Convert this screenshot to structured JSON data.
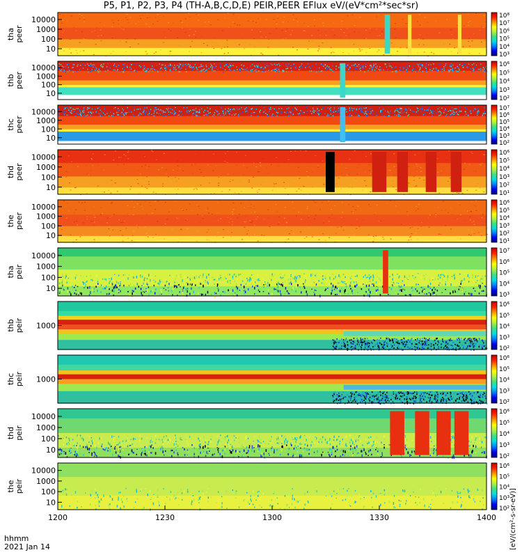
{
  "chart_data": {
    "type": "heatmap",
    "title": "P5, P1, P2, P3, P4 (TH-A,B,C,D,E) PEIR,PEER EFlux eV/(eV*cm²*sec*sr)",
    "colorbar_title": "[eV/(cm²-s-sr-eV)]",
    "x_axis": {
      "label_line1": "hhmm",
      "label_line2": "2021 Jan 14",
      "tick_labels": [
        "1200",
        "1230",
        "1300",
        "1330",
        "1400"
      ],
      "tick_values_min": [
        0,
        30,
        60,
        90,
        120
      ],
      "range_min": [
        0,
        120
      ]
    },
    "panels": [
      {
        "probe": "tha",
        "species": "peer",
        "ylabel": [
          "tha",
          "peer"
        ],
        "yticks": [
          "10",
          "100",
          "1000",
          "10000"
        ],
        "cbar_ticks": [
          "10³",
          "10⁴",
          "10⁵",
          "10⁶",
          "10⁷",
          "10⁸"
        ],
        "texture": "high",
        "bands": [
          {
            "from": 0.0,
            "to": 0.35,
            "color": "#f56a10"
          },
          {
            "from": 0.35,
            "to": 0.62,
            "color": "#f0501a"
          },
          {
            "from": 0.62,
            "to": 0.82,
            "color": "#f5a020"
          },
          {
            "from": 0.82,
            "to": 1.0,
            "color": "#fff03a"
          }
        ],
        "events": [
          {
            "t0": 91.5,
            "t1": 93.0,
            "color": "#3ad8c8"
          },
          {
            "t0": 98.0,
            "t1": 99.0,
            "color": "#ffe040"
          },
          {
            "t0": 112.0,
            "t1": 113.0,
            "color": "#ffe040"
          }
        ]
      },
      {
        "probe": "thb",
        "species": "peer",
        "ylabel": [
          "thb",
          "peer"
        ],
        "yticks": [
          "10",
          "100",
          "1000",
          "10000"
        ],
        "cbar_ticks": [
          "10²",
          "10³",
          "10⁴",
          "10⁵",
          "10⁶"
        ],
        "texture": "cyan_top",
        "bands": [
          {
            "from": 0.0,
            "to": 0.25,
            "color": "#d82010"
          },
          {
            "from": 0.25,
            "to": 0.5,
            "color": "#f04a12"
          },
          {
            "from": 0.5,
            "to": 0.62,
            "color": "#f5a020"
          },
          {
            "from": 0.62,
            "to": 0.68,
            "color": "#fff040"
          },
          {
            "from": 0.68,
            "to": 0.88,
            "color": "#40e0c0"
          },
          {
            "from": 0.88,
            "to": 1.0,
            "color": "#ffffff"
          }
        ],
        "events": [
          {
            "t0": 79.0,
            "t1": 80.5,
            "color": "#3ad8c8"
          }
        ]
      },
      {
        "probe": "thc",
        "species": "peer",
        "ylabel": [
          "thc",
          "peer"
        ],
        "yticks": [
          "10",
          "100",
          "1000",
          "10000"
        ],
        "cbar_ticks": [
          "10²",
          "10³",
          "10⁴",
          "10⁵",
          "10⁶",
          "10⁷"
        ],
        "texture": "cyan_top",
        "bands": [
          {
            "from": 0.0,
            "to": 0.28,
            "color": "#d02010"
          },
          {
            "from": 0.28,
            "to": 0.5,
            "color": "#f04a12"
          },
          {
            "from": 0.5,
            "to": 0.62,
            "color": "#f5a020"
          },
          {
            "from": 0.62,
            "to": 0.68,
            "color": "#fff040"
          },
          {
            "from": 0.68,
            "to": 0.92,
            "color": "#2a9ae8"
          },
          {
            "from": 0.92,
            "to": 1.0,
            "color": "#ffffff"
          }
        ],
        "events": [
          {
            "t0": 79.0,
            "t1": 80.5,
            "color": "#40c0f0"
          }
        ]
      },
      {
        "probe": "thd",
        "species": "peer",
        "ylabel": [
          "thd",
          "peer"
        ],
        "yticks": [
          "10",
          "100",
          "1000",
          "10000"
        ],
        "cbar_ticks": [
          "10¹",
          "10²",
          "10³",
          "10⁴",
          "10⁵",
          "10⁶"
        ],
        "texture": "high",
        "bands": [
          {
            "from": 0.0,
            "to": 0.3,
            "color": "#e83012"
          },
          {
            "from": 0.3,
            "to": 0.6,
            "color": "#f05a14"
          },
          {
            "from": 0.6,
            "to": 0.85,
            "color": "#f5a020"
          },
          {
            "from": 0.85,
            "to": 1.0,
            "color": "#ffe040"
          }
        ],
        "events": [
          {
            "t0": 75.0,
            "t1": 77.5,
            "color": "#000000"
          },
          {
            "t0": 88.0,
            "t1": 92.0,
            "color": "#d02010"
          },
          {
            "t0": 95.0,
            "t1": 98.0,
            "color": "#d02010"
          },
          {
            "t0": 103.0,
            "t1": 106.0,
            "color": "#d02010"
          },
          {
            "t0": 110.0,
            "t1": 113.0,
            "color": "#d02010"
          }
        ]
      },
      {
        "probe": "the",
        "species": "peer",
        "ylabel": [
          "the",
          "peer"
        ],
        "yticks": [
          "10",
          "100",
          "1000",
          "10000"
        ],
        "cbar_ticks": [
          "10¹",
          "10²",
          "10³",
          "10⁴",
          "10⁵",
          "10⁶"
        ],
        "texture": "high",
        "bands": [
          {
            "from": 0.0,
            "to": 0.35,
            "color": "#f06a14"
          },
          {
            "from": 0.35,
            "to": 0.62,
            "color": "#f0501a"
          },
          {
            "from": 0.62,
            "to": 0.85,
            "color": "#f58a20"
          },
          {
            "from": 0.85,
            "to": 1.0,
            "color": "#ffe040"
          }
        ],
        "events": []
      },
      {
        "probe": "tha",
        "species": "peir",
        "ylabel": [
          "tha",
          "peir"
        ],
        "yticks": [
          "10",
          "100",
          "1000",
          "10000"
        ],
        "cbar_ticks": [
          "10³",
          "10⁴",
          "10⁵",
          "10⁶",
          "10⁷"
        ],
        "texture": "ion",
        "bands": [
          {
            "from": 0.0,
            "to": 0.18,
            "color": "#30c870"
          },
          {
            "from": 0.18,
            "to": 0.45,
            "color": "#80e060"
          },
          {
            "from": 0.45,
            "to": 0.8,
            "color": "#d8f040"
          },
          {
            "from": 0.8,
            "to": 1.0,
            "color": "#90e860"
          }
        ],
        "events": [
          {
            "t0": 91.0,
            "t1": 92.5,
            "color": "#e83010"
          }
        ]
      },
      {
        "probe": "thb",
        "species": "peir",
        "ylabel": [
          "thb",
          "peir"
        ],
        "yticks": [
          "1000"
        ],
        "cbar_ticks": [
          "10²",
          "10³",
          "10⁴",
          "10⁵",
          "10⁶"
        ],
        "texture": "stripe",
        "bands": [
          {
            "from": 0.0,
            "to": 0.2,
            "color": "#20c8a0"
          },
          {
            "from": 0.2,
            "to": 0.3,
            "color": "#30e0a0"
          },
          {
            "from": 0.3,
            "to": 0.38,
            "color": "#f5d020"
          },
          {
            "from": 0.38,
            "to": 0.48,
            "color": "#d82010"
          },
          {
            "from": 0.48,
            "to": 0.58,
            "color": "#f05020"
          },
          {
            "from": 0.58,
            "to": 0.68,
            "color": "#f5c020"
          },
          {
            "from": 0.68,
            "to": 0.8,
            "color": "#a0e850"
          },
          {
            "from": 0.8,
            "to": 1.0,
            "color": "#30c0a0"
          }
        ],
        "events": [
          {
            "t0": 80.0,
            "t1": 120.0,
            "color": "#60d8b0"
          }
        ]
      },
      {
        "probe": "thc",
        "species": "peir",
        "ylabel": [
          "thc",
          "peir"
        ],
        "yticks": [
          "1000"
        ],
        "cbar_ticks": [
          "10²",
          "10³",
          "10⁴",
          "10⁵",
          "10⁶"
        ],
        "texture": "stripe",
        "bands": [
          {
            "from": 0.0,
            "to": 0.2,
            "color": "#20c8b0"
          },
          {
            "from": 0.2,
            "to": 0.32,
            "color": "#40d8a0"
          },
          {
            "from": 0.32,
            "to": 0.4,
            "color": "#f5c020"
          },
          {
            "from": 0.4,
            "to": 0.5,
            "color": "#d82010"
          },
          {
            "from": 0.5,
            "to": 0.6,
            "color": "#f5a020"
          },
          {
            "from": 0.6,
            "to": 0.75,
            "color": "#a0e850"
          },
          {
            "from": 0.75,
            "to": 1.0,
            "color": "#30c0a0"
          }
        ],
        "events": [
          {
            "t0": 80.0,
            "t1": 120.0,
            "color": "#50b8e0"
          }
        ]
      },
      {
        "probe": "thd",
        "species": "peir",
        "ylabel": [
          "thd",
          "peir"
        ],
        "yticks": [
          "10",
          "100",
          "1000",
          "10000"
        ],
        "cbar_ticks": [
          "10²",
          "10³",
          "10⁴",
          "10⁵",
          "10⁶"
        ],
        "texture": "ion",
        "bands": [
          {
            "from": 0.0,
            "to": 0.2,
            "color": "#30c890"
          },
          {
            "from": 0.2,
            "to": 0.5,
            "color": "#70d870"
          },
          {
            "from": 0.5,
            "to": 0.8,
            "color": "#c8ec50"
          },
          {
            "from": 0.8,
            "to": 1.0,
            "color": "#90e060"
          }
        ],
        "events": [
          {
            "t0": 93.0,
            "t1": 97.0,
            "color": "#e83010"
          },
          {
            "t0": 100.0,
            "t1": 104.0,
            "color": "#e83010"
          },
          {
            "t0": 106.0,
            "t1": 110.0,
            "color": "#e83010"
          },
          {
            "t0": 111.0,
            "t1": 115.0,
            "color": "#e83010"
          }
        ]
      },
      {
        "probe": "the",
        "species": "peir",
        "ylabel": [
          "the",
          "peir"
        ],
        "yticks": [
          "10",
          "100",
          "1000",
          "10000"
        ],
        "cbar_ticks": [
          "10²",
          "10³",
          "10⁴",
          "10⁵",
          "10⁶"
        ],
        "texture": "ion_soft",
        "bands": [
          {
            "from": 0.0,
            "to": 0.3,
            "color": "#90e060"
          },
          {
            "from": 0.3,
            "to": 0.7,
            "color": "#c8ec50"
          },
          {
            "from": 0.7,
            "to": 1.0,
            "color": "#e8f040"
          }
        ],
        "events": []
      }
    ],
    "colorbar_scale": [
      "#000080",
      "#0000f0",
      "#0080ff",
      "#00e0e0",
      "#40e080",
      "#b0f040",
      "#ffff00",
      "#ff9000",
      "#ff2000",
      "#c00000"
    ]
  }
}
